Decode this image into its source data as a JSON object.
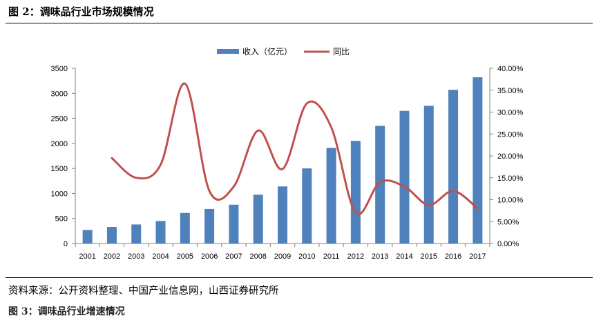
{
  "figure": {
    "title": "图 2：调味品行业市场规模情况",
    "source": "资料来源：公开资料整理、中国产业信息网，山西证券研究所",
    "next_caption": "图 3：调味品行业增速情况"
  },
  "chart_data": {
    "type": "bar",
    "title": "",
    "xlabel": "",
    "ylabel": "",
    "categories": [
      "2001",
      "2002",
      "2003",
      "2004",
      "2005",
      "2006",
      "2007",
      "2008",
      "2009",
      "2010",
      "2011",
      "2012",
      "2013",
      "2014",
      "2015",
      "2016",
      "2017"
    ],
    "series": [
      {
        "name": "收入（亿元）",
        "type": "bar",
        "axis": "left",
        "color": "#4F81BD",
        "values": [
          270,
          330,
          380,
          450,
          610,
          690,
          775,
          975,
          1140,
          1500,
          1910,
          2050,
          2350,
          2650,
          2750,
          3070,
          3320
        ]
      },
      {
        "name": "同比",
        "type": "line",
        "axis": "right",
        "color": "#C0504D",
        "values": [
          null,
          19.5,
          15.0,
          18.0,
          36.5,
          12.0,
          13.0,
          25.8,
          17.0,
          32.0,
          26.5,
          7.0,
          14.0,
          13.0,
          8.8,
          12.0,
          8.0
        ]
      }
    ],
    "y_left": {
      "min": 0,
      "max": 3500,
      "ticks": [
        "0",
        "500",
        "1000",
        "1500",
        "2000",
        "2500",
        "3000",
        "3500"
      ]
    },
    "y_right": {
      "min": 0,
      "max": 40,
      "ticks": [
        "0.00%",
        "5.00%",
        "10.00%",
        "15.00%",
        "20.00%",
        "25.00%",
        "30.00%",
        "35.00%",
        "40.00%"
      ]
    },
    "legend": "top-center",
    "grid": false
  }
}
